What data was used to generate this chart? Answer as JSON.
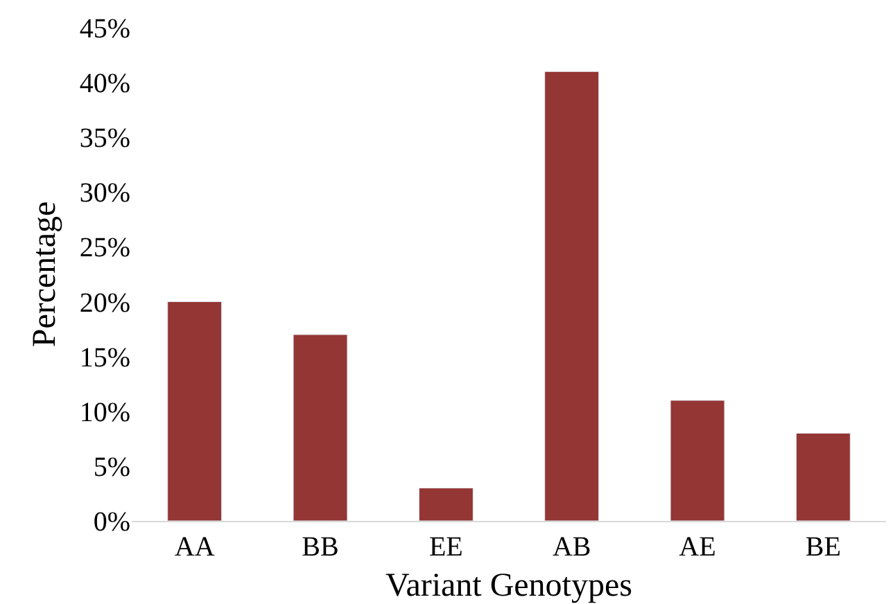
{
  "chart_data": {
    "type": "bar",
    "xlabel": "Variant Genotypes",
    "ylabel": "Percentage",
    "categories": [
      "AA",
      "BB",
      "EE",
      "AB",
      "AE",
      "BE"
    ],
    "values": [
      20,
      17,
      3,
      41,
      11,
      8
    ],
    "color": "#943634",
    "ylim": [
      0,
      45
    ],
    "yticks": [
      {
        "value": 0,
        "label": "0%"
      },
      {
        "value": 5,
        "label": "5%"
      },
      {
        "value": 10,
        "label": "10%"
      },
      {
        "value": 15,
        "label": "15%"
      },
      {
        "value": 20,
        "label": "20%"
      },
      {
        "value": 25,
        "label": "25%"
      },
      {
        "value": 30,
        "label": "30%"
      },
      {
        "value": 35,
        "label": "35%"
      },
      {
        "value": 40,
        "label": "40%"
      },
      {
        "value": 45,
        "label": "45%"
      }
    ]
  }
}
